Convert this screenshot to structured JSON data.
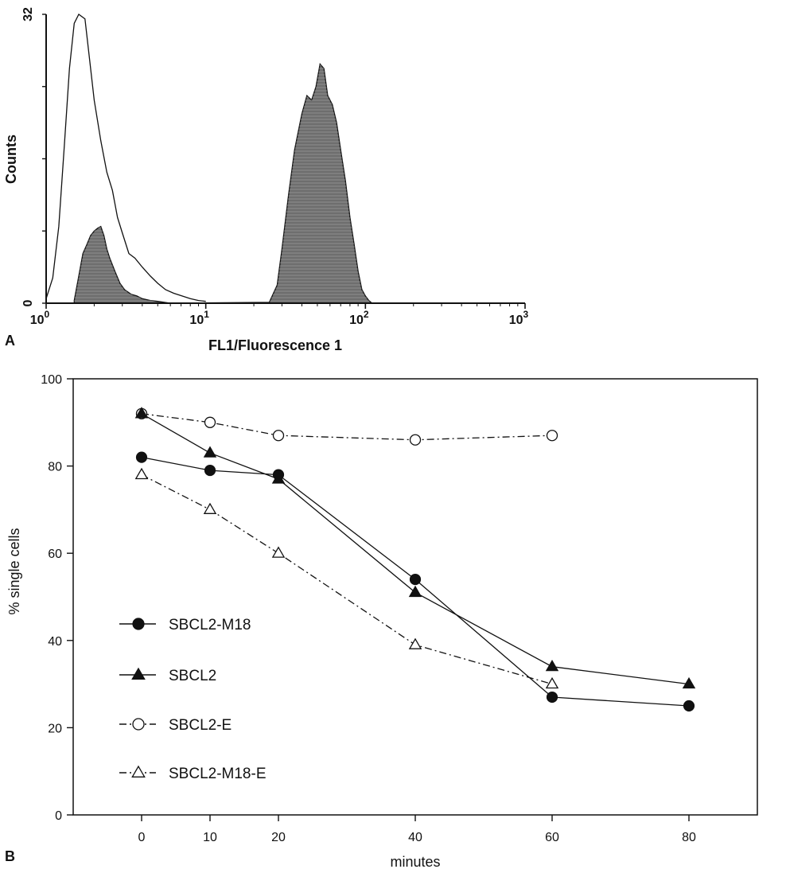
{
  "chart_data": [
    {
      "panel_label": "A",
      "type": "area",
      "scale": "log-x",
      "xlabel": "FL1/Fluorescence 1",
      "ylabel": "Counts",
      "xlim": [
        1,
        1000
      ],
      "ylim": [
        0,
        32
      ],
      "xticks": [
        {
          "value": 1,
          "base": "10",
          "exp": "0"
        },
        {
          "value": 10,
          "base": "10",
          "exp": "1"
        },
        {
          "value": 100,
          "base": "10",
          "exp": "2"
        },
        {
          "value": 1000,
          "base": "10",
          "exp": "3"
        }
      ],
      "yticks": [
        "0",
        "32"
      ],
      "series": [
        {
          "style": "outline",
          "x": [
            1.0,
            1.1,
            1.2,
            1.3,
            1.4,
            1.5,
            1.6,
            1.75,
            1.9,
            2.0,
            2.2,
            2.4,
            2.6,
            2.8,
            3.0,
            3.3,
            3.6,
            4.0,
            4.5,
            5.0,
            5.6,
            6.3,
            7.1,
            8.0,
            9.0,
            10.0
          ],
          "y": [
            0.5,
            2.8,
            8.5,
            17.5,
            26.0,
            31.0,
            32.0,
            31.5,
            26.0,
            22.5,
            18.0,
            14.5,
            12.5,
            9.5,
            7.8,
            5.5,
            5.0,
            4.0,
            3.0,
            2.2,
            1.5,
            1.1,
            0.8,
            0.5,
            0.3,
            0.2
          ]
        },
        {
          "style": "filled",
          "x": [
            1.5,
            1.6,
            1.7,
            1.8,
            1.9,
            2.0,
            2.1,
            2.2,
            2.3,
            2.4,
            2.5,
            2.7,
            2.9,
            3.1,
            3.4,
            3.7,
            4.0,
            4.5,
            5.0,
            5.5,
            6.0,
            25,
            28,
            30,
            33,
            36,
            40,
            43,
            46,
            49,
            52,
            55,
            58,
            62,
            66,
            70,
            75,
            80,
            85,
            90,
            95,
            100,
            105,
            110
          ],
          "y": [
            0.3,
            3.0,
            5.5,
            6.5,
            7.5,
            8.0,
            8.3,
            8.5,
            7.5,
            6.0,
            5.0,
            3.5,
            2.2,
            1.5,
            1.0,
            0.8,
            0.5,
            0.3,
            0.2,
            0.1,
            0.0,
            0.1,
            2.0,
            6.0,
            12.0,
            17.0,
            21.0,
            23.0,
            22.5,
            24.0,
            26.5,
            26.0,
            23.0,
            22.0,
            20.0,
            17.0,
            13.5,
            9.5,
            6.5,
            3.5,
            1.5,
            0.8,
            0.3,
            0.0
          ]
        }
      ]
    },
    {
      "panel_label": "B",
      "type": "line",
      "xlabel": "minutes",
      "ylabel": "% single cells",
      "xlim": [
        -10,
        90
      ],
      "ylim": [
        0,
        100
      ],
      "xticks": [
        "0",
        "10",
        "20",
        "40",
        "60",
        "80"
      ],
      "yticks": [
        "0",
        "20",
        "40",
        "60",
        "80",
        "100"
      ],
      "categories": [
        "0",
        "10",
        "20",
        "40",
        "60",
        "80"
      ],
      "legend_position": "left",
      "series": [
        {
          "name": "SBCL2-M18",
          "marker": "filled-circle",
          "line": "solid",
          "values": [
            82,
            79,
            78,
            54,
            27,
            25
          ]
        },
        {
          "name": "SBCL2",
          "marker": "filled-triangle",
          "line": "solid",
          "values": [
            92,
            83,
            77,
            51,
            34,
            30
          ]
        },
        {
          "name": "SBCL2-E",
          "marker": "open-circle",
          "line": "dashdot",
          "values": [
            92,
            90,
            87,
            86,
            87,
            null
          ]
        },
        {
          "name": "SBCL2-M18-E",
          "marker": "open-triangle",
          "line": "dashdot",
          "values": [
            78,
            70,
            60,
            39,
            30,
            null
          ]
        }
      ]
    }
  ]
}
